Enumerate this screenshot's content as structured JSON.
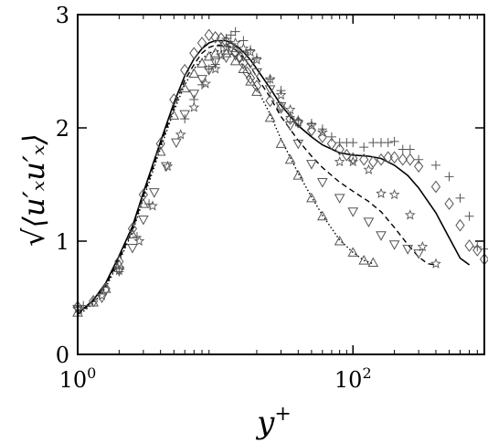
{
  "chart_data": {
    "type": "line",
    "xscale": "log",
    "xlim": [
      1,
      900
    ],
    "ylim": [
      0,
      3
    ],
    "xticks": [
      {
        "value": 1,
        "base": "10",
        "exp": "0"
      },
      {
        "value": 100,
        "base": "10",
        "exp": "2"
      }
    ],
    "yticks": [
      {
        "value": 0,
        "label": "0"
      },
      {
        "value": 1,
        "label": "1"
      },
      {
        "value": 2,
        "label": "2"
      },
      {
        "value": 3,
        "label": "3"
      }
    ],
    "xlabel": {
      "base": "y",
      "sup": "+"
    },
    "ylabel": "√⟨u′ₓu′ₓ⟩",
    "series": [
      {
        "style": "solid",
        "x": [
          1,
          1.3,
          1.6,
          2,
          2.5,
          3,
          4,
          5,
          6,
          7,
          8,
          9,
          10,
          12,
          14,
          16,
          18,
          20,
          25,
          30,
          40,
          50,
          60,
          80,
          100,
          130,
          160,
          200,
          250,
          300,
          400,
          500,
          600,
          700
        ],
        "y": [
          0.36,
          0.48,
          0.63,
          0.87,
          1.13,
          1.43,
          1.88,
          2.22,
          2.46,
          2.61,
          2.7,
          2.75,
          2.77,
          2.77,
          2.73,
          2.67,
          2.6,
          2.52,
          2.35,
          2.2,
          2.02,
          1.92,
          1.85,
          1.78,
          1.76,
          1.75,
          1.73,
          1.67,
          1.58,
          1.47,
          1.25,
          1.03,
          0.85,
          0.79
        ]
      },
      {
        "style": "dashed",
        "x": [
          1,
          1.3,
          1.6,
          2,
          2.5,
          3,
          4,
          5,
          6,
          7,
          8,
          9,
          10,
          12,
          14,
          16,
          18,
          20,
          25,
          30,
          40,
          50,
          60,
          80,
          100,
          130,
          160,
          200,
          250,
          300,
          350,
          400
        ],
        "y": [
          0.35,
          0.47,
          0.61,
          0.84,
          1.1,
          1.4,
          1.85,
          2.18,
          2.42,
          2.56,
          2.66,
          2.71,
          2.73,
          2.73,
          2.69,
          2.62,
          2.54,
          2.45,
          2.27,
          2.1,
          1.89,
          1.75,
          1.65,
          1.52,
          1.44,
          1.35,
          1.26,
          1.12,
          0.97,
          0.86,
          0.8,
          0.79
        ]
      },
      {
        "style": "dotted",
        "x": [
          1,
          1.3,
          1.6,
          2,
          2.5,
          3,
          4,
          5,
          6,
          7,
          8,
          9,
          10,
          12,
          14,
          16,
          18,
          20,
          25,
          30,
          40,
          50,
          60,
          80,
          100,
          120,
          140
        ],
        "y": [
          0.34,
          0.45,
          0.59,
          0.82,
          1.08,
          1.37,
          1.82,
          2.15,
          2.38,
          2.52,
          2.61,
          2.66,
          2.68,
          2.68,
          2.63,
          2.55,
          2.45,
          2.35,
          2.12,
          1.9,
          1.6,
          1.39,
          1.23,
          1.01,
          0.9,
          0.83,
          0.8
        ]
      }
    ],
    "markers": [
      {
        "symbol": "plus",
        "x": [
          1,
          1.1,
          2,
          2.7,
          3.3,
          6,
          7,
          8,
          9,
          10,
          11,
          12,
          13,
          14,
          16,
          18,
          20,
          25,
          30,
          35,
          40,
          50,
          60,
          70,
          80,
          90,
          100,
          120,
          140,
          160,
          180,
          200,
          230,
          260,
          300,
          400,
          500,
          600,
          700,
          800,
          900
        ],
        "y": [
          0.42,
          0.43,
          0.73,
          1.04,
          1.33,
          2.08,
          2.25,
          2.38,
          2.52,
          2.56,
          2.72,
          2.79,
          2.82,
          2.85,
          2.77,
          2.69,
          2.62,
          2.43,
          2.33,
          2.1,
          2.07,
          2.04,
          1.99,
          1.92,
          1.87,
          1.87,
          1.87,
          1.83,
          1.87,
          1.87,
          1.87,
          1.88,
          1.81,
          1.81,
          1.72,
          1.67,
          1.57,
          1.38,
          1.22,
          0.95,
          0.93
        ]
      },
      {
        "symbol": "diamond",
        "x": [
          1,
          1.3,
          1.6,
          2,
          2.5,
          3,
          4,
          5,
          6,
          7,
          8,
          9,
          10,
          11,
          12,
          13,
          14,
          15,
          16,
          17,
          18,
          20,
          25,
          30,
          35,
          40,
          50,
          60,
          70,
          80,
          90,
          100,
          120,
          140,
          160,
          180,
          200,
          230,
          260,
          300,
          400,
          500,
          600,
          700,
          800,
          900
        ],
        "y": [
          0.42,
          0.47,
          0.58,
          0.82,
          1.11,
          1.41,
          1.86,
          2.25,
          2.51,
          2.66,
          2.75,
          2.82,
          2.8,
          2.79,
          2.76,
          2.72,
          2.67,
          2.63,
          2.57,
          2.49,
          2.44,
          2.37,
          2.24,
          2.18,
          2.08,
          2.05,
          1.98,
          1.92,
          1.86,
          1.81,
          1.76,
          1.73,
          1.72,
          1.7,
          1.72,
          1.74,
          1.74,
          1.72,
          1.72,
          1.66,
          1.48,
          1.33,
          1.14,
          0.96,
          0.92,
          0.84
        ]
      },
      {
        "symbol": "star",
        "x": [
          1,
          1.5,
          2,
          2.8,
          3.5,
          4.5,
          5.6,
          7,
          8.5,
          10,
          11,
          12,
          13,
          14,
          16,
          18,
          20,
          25,
          30,
          35,
          40,
          50,
          60,
          80,
          100,
          130,
          160,
          200,
          260,
          320,
          400
        ],
        "y": [
          0.4,
          0.52,
          0.74,
          1.0,
          1.31,
          1.66,
          1.94,
          2.18,
          2.39,
          2.52,
          2.64,
          2.71,
          2.73,
          2.75,
          2.7,
          2.67,
          2.6,
          2.43,
          2.29,
          2.16,
          2.05,
          2.02,
          1.96,
          1.7,
          1.7,
          1.63,
          1.42,
          1.41,
          1.23,
          0.95,
          0.8
        ]
      },
      {
        "symbol": "triangle-down",
        "x": [
          1,
          1.5,
          2,
          2.5,
          3,
          3.6,
          4.4,
          5.2,
          6,
          7,
          8,
          9,
          10,
          12,
          14,
          16,
          18,
          20,
          25,
          30,
          35,
          40,
          50,
          60,
          80,
          100,
          130,
          160,
          200,
          250,
          300
        ],
        "y": [
          0.4,
          0.5,
          0.74,
          0.94,
          1.19,
          1.43,
          1.66,
          1.87,
          2.12,
          2.3,
          2.43,
          2.51,
          2.58,
          2.62,
          2.64,
          2.63,
          2.57,
          2.49,
          2.34,
          2.19,
          2.02,
          1.86,
          1.68,
          1.52,
          1.38,
          1.26,
          1.17,
          1.05,
          0.97,
          0.93,
          0.89
        ]
      },
      {
        "symbol": "triangle-up",
        "x": [
          1,
          1.3,
          1.6,
          2,
          2.5,
          3,
          4,
          5,
          6,
          7,
          8,
          9,
          10,
          12,
          14,
          16,
          18,
          20,
          25,
          30,
          35,
          40,
          50,
          60,
          80,
          100,
          120,
          140
        ],
        "y": [
          0.37,
          0.46,
          0.58,
          0.79,
          1.06,
          1.33,
          1.79,
          2.11,
          2.35,
          2.48,
          2.57,
          2.63,
          2.66,
          2.66,
          2.59,
          2.52,
          2.41,
          2.32,
          2.09,
          1.86,
          1.72,
          1.58,
          1.38,
          1.22,
          1.0,
          0.9,
          0.83,
          0.81
        ]
      }
    ]
  }
}
